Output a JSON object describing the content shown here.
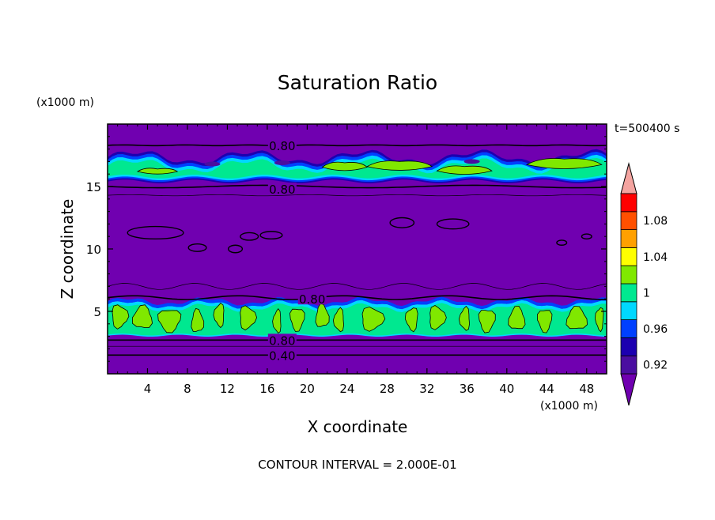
{
  "chart_data": {
    "type": "heatmap",
    "title": "Saturation Ratio",
    "xlabel": "X coordinate",
    "ylabel": "Z coordinate",
    "x_unit_label": "(x1000 m)",
    "y_unit_label": "(x1000 m)",
    "time_label": "t=500400 s",
    "footer": "CONTOUR INTERVAL = 2.000E-01",
    "xlim": [
      0,
      50
    ],
    "ylim": [
      0,
      20
    ],
    "x_ticks": [
      4,
      8,
      12,
      16,
      20,
      24,
      28,
      32,
      36,
      40,
      44,
      48
    ],
    "y_ticks": [
      5,
      10,
      15
    ],
    "contour_labels": [
      {
        "text": "0.80",
        "x": 17.5,
        "z": 18.3
      },
      {
        "text": "0.80",
        "x": 17.5,
        "z": 14.8
      },
      {
        "text": "0.80",
        "x": 20.5,
        "z": 6.0
      },
      {
        "text": "0.80",
        "x": 17.5,
        "z": 2.7
      },
      {
        "text": "0.40",
        "x": 17.5,
        "z": 1.5
      }
    ],
    "colorbar": {
      "levels": [
        0.92,
        0.94,
        0.96,
        0.98,
        1.0,
        1.02,
        1.04,
        1.06,
        1.08,
        1.1
      ],
      "tick_labels": [
        "0.92",
        "0.96",
        "1",
        "1.04",
        "1.08"
      ],
      "colors": [
        "#4a0ea0",
        "#1c00b0",
        "#0040ff",
        "#00d8ff",
        "#00e890",
        "#80e800",
        "#ffff00",
        "#ffa000",
        "#ff5000",
        "#ff0000",
        "#f4a4a0"
      ],
      "under_color": "#7000b0",
      "over_color": "#f4a4a0"
    },
    "background_color": "#7000b0"
  }
}
